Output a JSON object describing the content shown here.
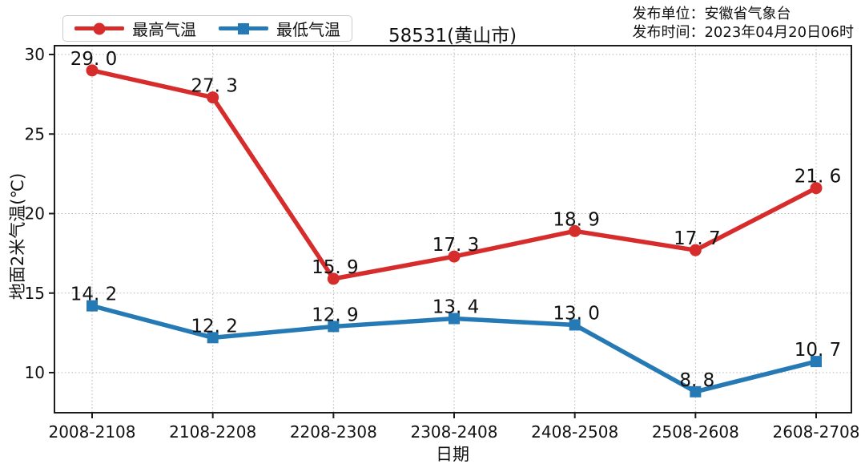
{
  "header": {
    "title": "58531(黄山市)",
    "publisher_line": "发布单位：安徽省气象台",
    "publish_time_line": "发布时间：2023年04月20日06时"
  },
  "legend": {
    "position": "top-left",
    "items": [
      {
        "label": "最高气温",
        "color": "#d62c2c",
        "marker": "circle"
      },
      {
        "label": "最低气温",
        "color": "#2579b5",
        "marker": "square"
      }
    ]
  },
  "chart_data": {
    "type": "line",
    "title": "58531(黄山市)",
    "xlabel": "日期",
    "ylabel": "地面2米气温(℃)",
    "categories": [
      "2008-2108",
      "2108-2208",
      "2208-2308",
      "2308-2408",
      "2408-2508",
      "2508-2608",
      "2608-2708"
    ],
    "series": [
      {
        "name": "最高气温",
        "color": "#d62c2c",
        "marker": "circle",
        "values": [
          29.0,
          27.3,
          15.9,
          17.3,
          18.9,
          17.7,
          21.6
        ],
        "point_labels": [
          "29. 0",
          "27. 3",
          "15. 9",
          "17. 3",
          "18. 9",
          "17. 7",
          "21. 6"
        ]
      },
      {
        "name": "最低气温",
        "color": "#2579b5",
        "marker": "square",
        "values": [
          14.2,
          12.2,
          12.9,
          13.4,
          13.0,
          8.8,
          10.7
        ],
        "point_labels": [
          "14. 2",
          "12. 2",
          "12. 9",
          "13. 4",
          "13. 0",
          "8. 8",
          "10. 7"
        ]
      }
    ],
    "yticks": [
      10,
      15,
      20,
      25,
      30
    ],
    "ylim": [
      7.5,
      30.6
    ],
    "grid": "dotted-both",
    "legend_position": "top-left",
    "colors": {
      "max_series": "#d62c2c",
      "min_series": "#2579b5",
      "gridline": "#b3b3b3",
      "spine": "#1c1c1c",
      "text": "#111111"
    }
  }
}
